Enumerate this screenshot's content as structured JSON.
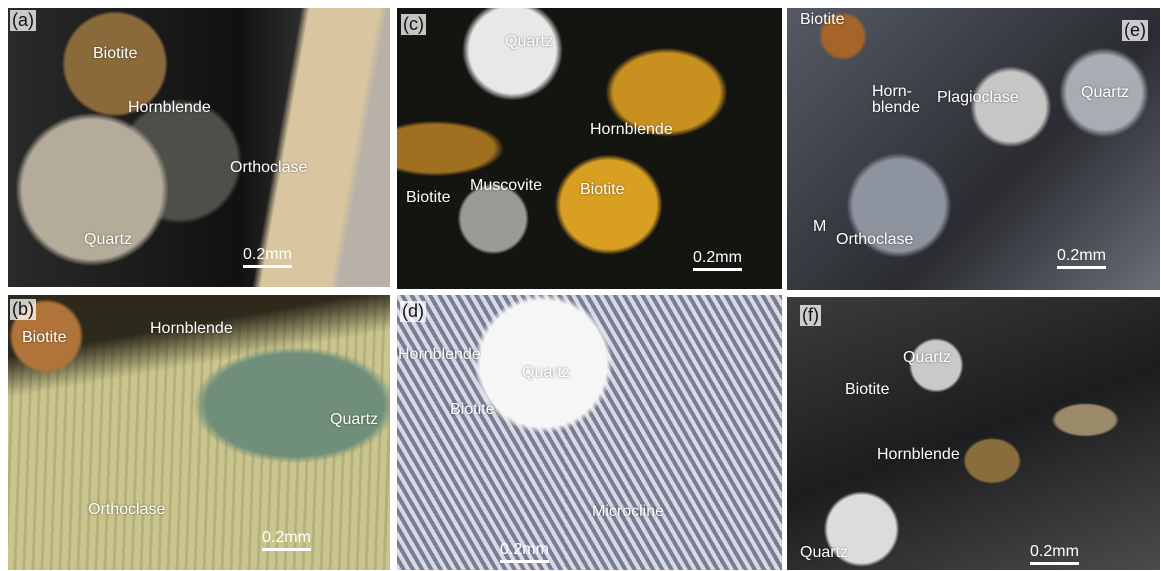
{
  "panels": [
    {
      "letter": "(a)",
      "labels": [
        "Biotite",
        "Hornblende",
        "Orthoclase",
        "Quartz"
      ],
      "scale_bar": "0.2mm"
    },
    {
      "letter": "(b)",
      "labels": [
        "Biotite",
        "Hornblende",
        "Quartz",
        "Orthoclase"
      ],
      "scale_bar": "0.2mm"
    },
    {
      "letter": "(c)",
      "labels": [
        "Quartz",
        "Hornblende",
        "Biotite",
        "Muscovite",
        "Biotite"
      ],
      "scale_bar": "0.2mm"
    },
    {
      "letter": "(d)",
      "labels": [
        "Hornblende",
        "Quartz",
        "Biotite",
        "Microcline"
      ],
      "scale_bar": "0.2mm"
    },
    {
      "letter": "(e)",
      "labels": [
        "Biotite",
        "Horn-\nblende",
        "Plagioclase",
        "Quartz",
        "M",
        "Orthoclase"
      ],
      "scale_bar": "0.2mm"
    },
    {
      "letter": "(f)",
      "labels": [
        "Quartz",
        "Biotite",
        "Hornblende",
        "Quartz"
      ],
      "scale_bar": "0.2mm"
    }
  ]
}
